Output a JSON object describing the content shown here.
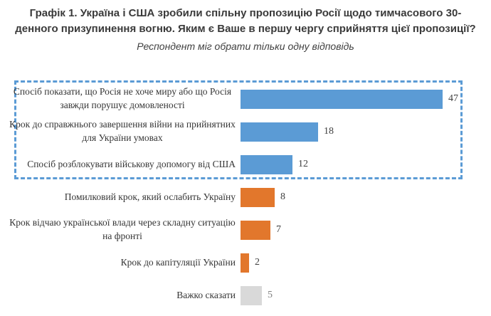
{
  "colors": {
    "blue": "#5B9BD5",
    "orange": "#E2772C",
    "gray": "#D9D9D9",
    "box_border": "#5B9BD5",
    "title_text": "#3A3A3A",
    "label_text": "#353535",
    "value_text": "#404040",
    "muted_value_text": "#808080"
  },
  "chart_data": {
    "type": "bar",
    "orientation": "horizontal",
    "title": "Графік 1. Україна і США зробили спільну пропозицію Росії щодо тимчасового 30-денного призупинення вогню. Яким є Ваше в першу чергу сприйняття цієї пропозиції?",
    "subtitle": "Респондент міг обрати тільки одну відповідь",
    "categories": [
      "Спосіб показати, що Росія не хоче миру або що Росія завжди порушує домовленості",
      "Крок до справжнього завершення війни на прийнятних для України умовах",
      "Спосіб розблокувати військову допомогу від США",
      "Помилковий крок, який ослабить Україну",
      "Крок відчаю української влади через складну ситуацію на фронті",
      "Крок до капітуляції України",
      "Важко сказати"
    ],
    "values": [
      47,
      18,
      12,
      8,
      7,
      2,
      5
    ],
    "bar_colors": [
      "blue",
      "blue",
      "blue",
      "orange",
      "orange",
      "orange",
      "gray"
    ],
    "value_label_colors": [
      "value_text",
      "value_text",
      "value_text",
      "value_text",
      "value_text",
      "value_text",
      "muted_value_text"
    ],
    "xlim": [
      0,
      50
    ],
    "grid": false,
    "legend": false,
    "data_labels": "outside end of bar",
    "annotation": "first three (blue) bars enclosed in a blue dashed highlight box"
  }
}
